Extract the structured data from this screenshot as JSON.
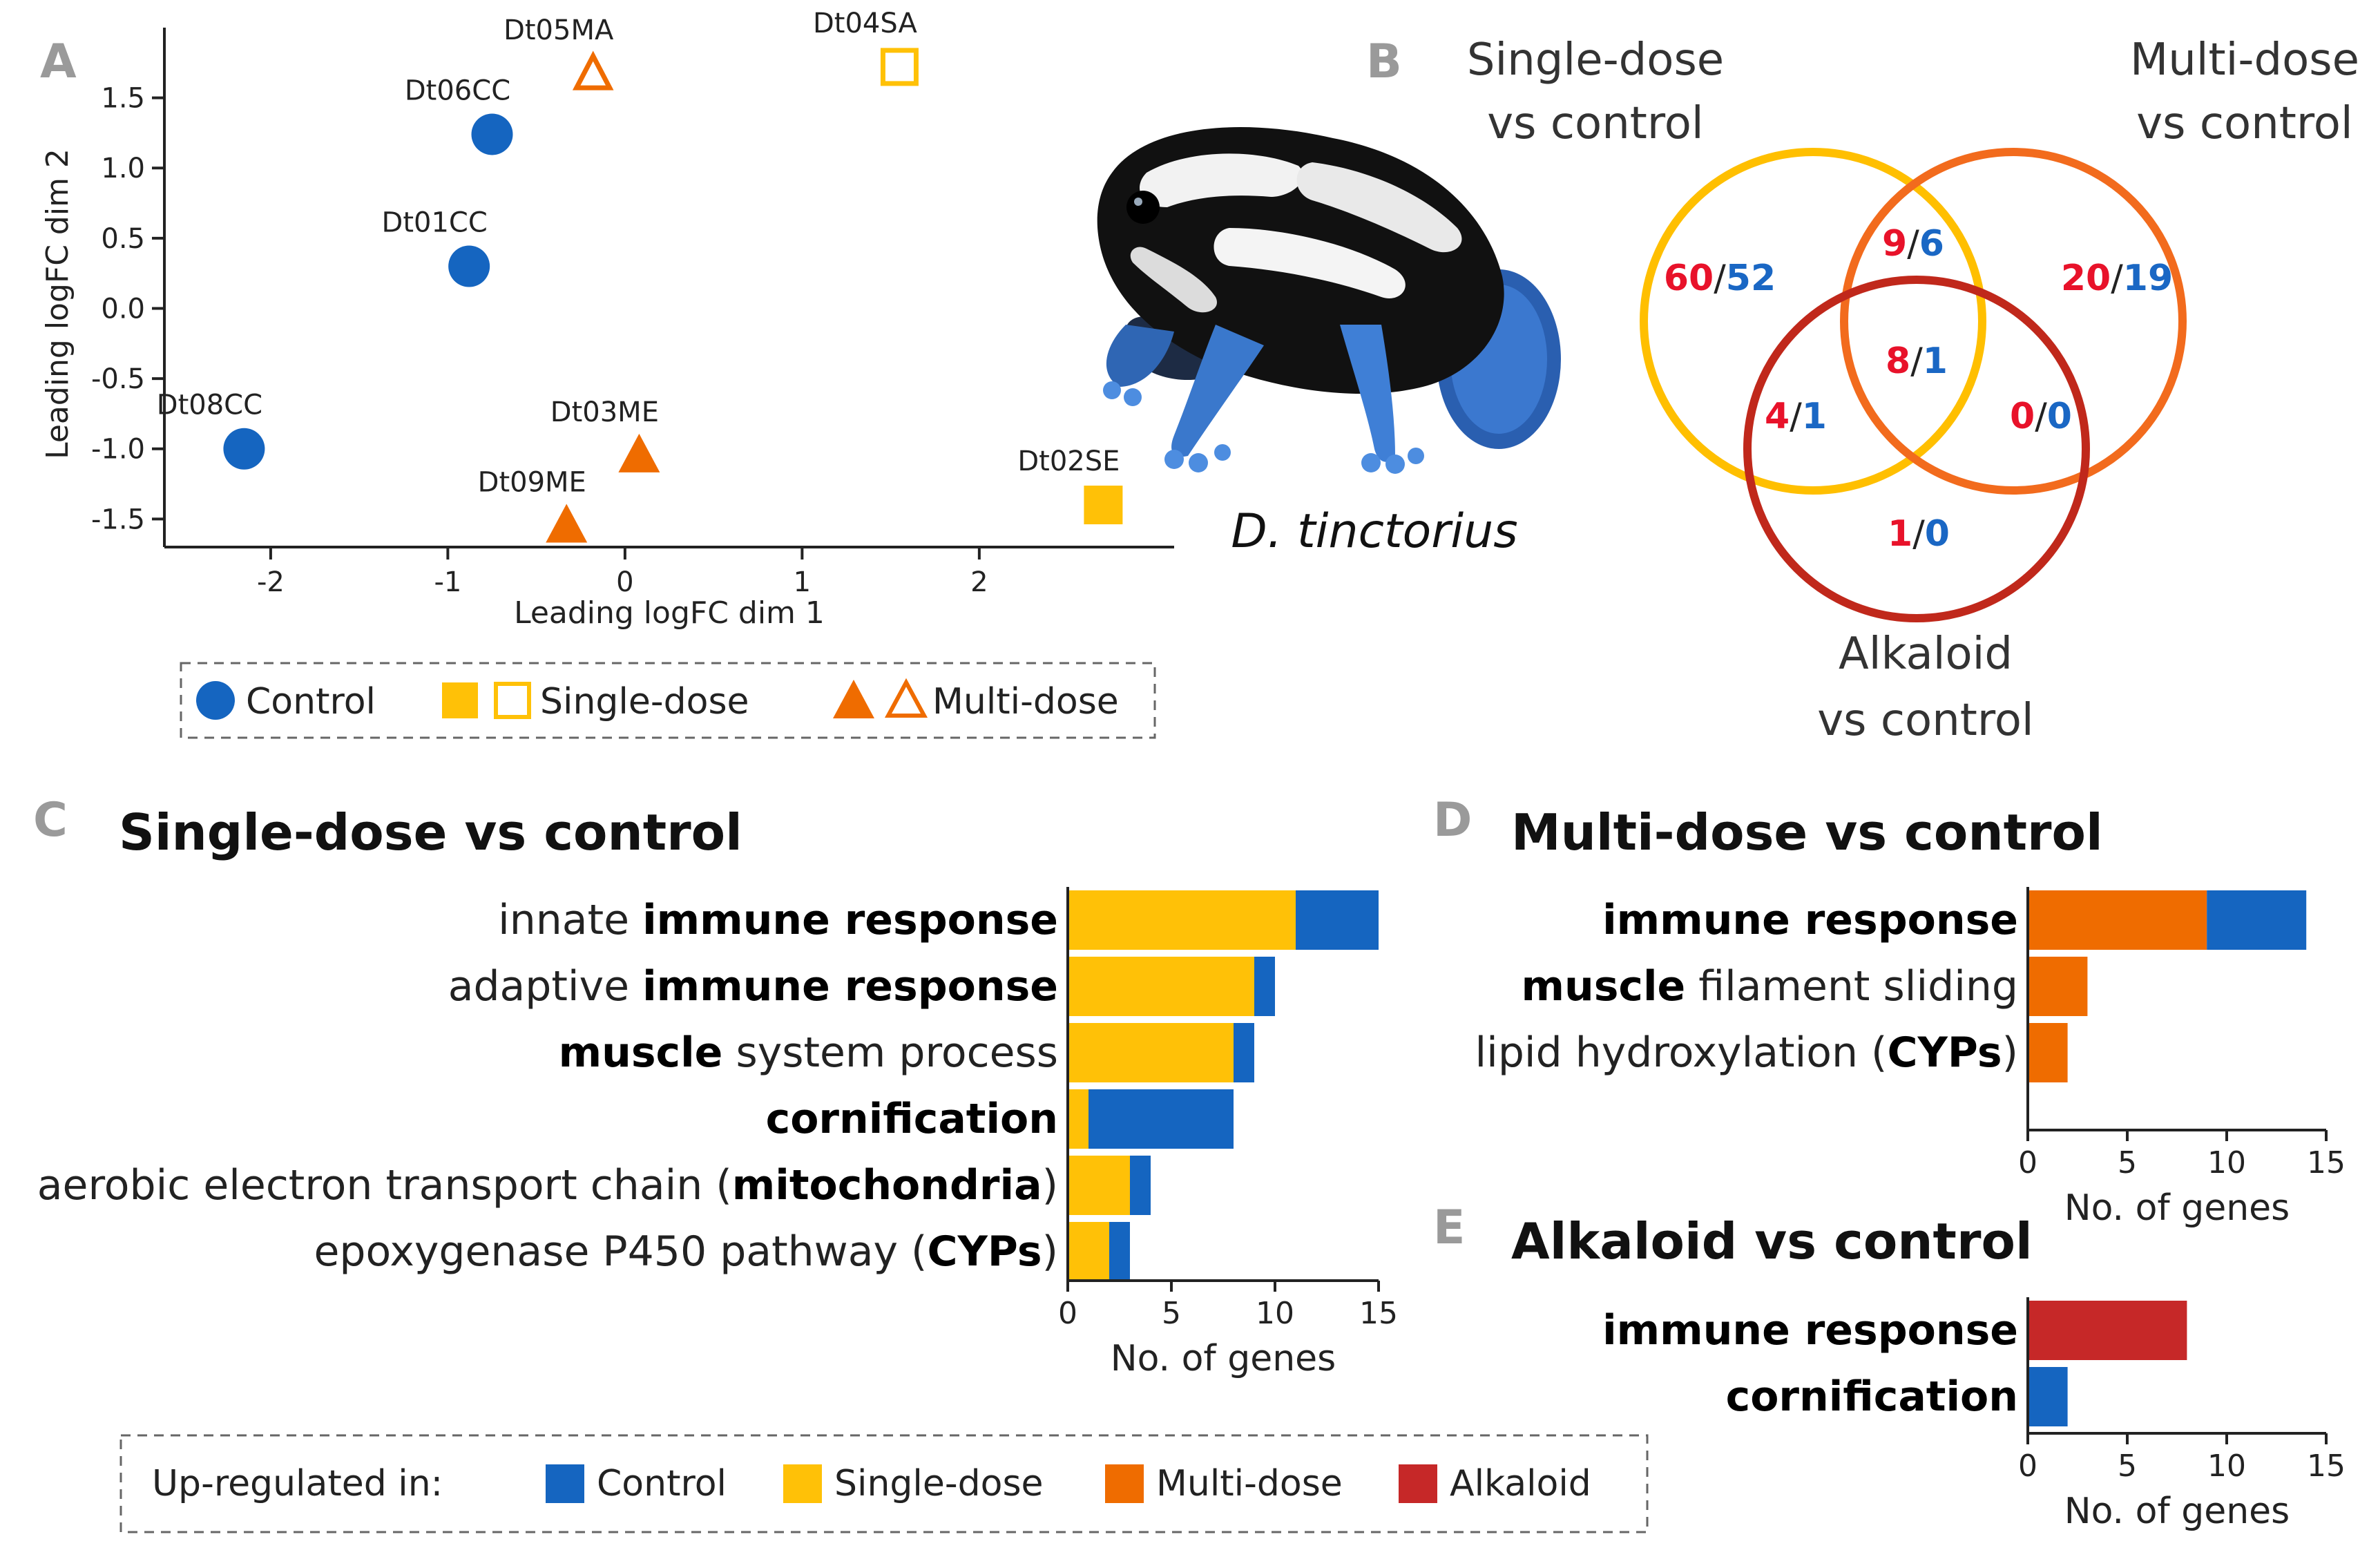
{
  "colors": {
    "control": "#1565c0",
    "single": "#ffc107",
    "multi": "#ef6c00",
    "alkaloid": "#c62828",
    "venn_red": "#e8122a",
    "venn_blue": "#1a67c4"
  },
  "panel_letters": {
    "a": "A",
    "b": "B",
    "c": "C",
    "d": "D",
    "e": "E"
  },
  "chart_data": [
    {
      "id": "A",
      "type": "scatter",
      "xlabel": "Leading logFC dim 1",
      "ylabel": "Leading logFC dim 2",
      "xlim": [
        -2.6,
        3.1
      ],
      "ylim": [
        -1.7,
        2.0
      ],
      "xticks": [
        -2,
        -1,
        0,
        1,
        2
      ],
      "xtick_labels": [
        "-2",
        "-1",
        "0",
        "1",
        "2"
      ],
      "yticks": [
        -1.5,
        -1.0,
        -0.5,
        0.0,
        0.5,
        1.0,
        1.5
      ],
      "ytick_labels": [
        "-1.5",
        "-1.0",
        "-0.5",
        "0.0",
        "0.5",
        "1.0",
        "1.5"
      ],
      "points": [
        {
          "label": "Dt05MA",
          "x": -0.18,
          "y": 1.67,
          "group": "multi",
          "marker": "triangle-open"
        },
        {
          "label": "Dt04SA",
          "x": 1.55,
          "y": 1.72,
          "group": "single",
          "marker": "square-open"
        },
        {
          "label": "Dt06CC",
          "x": -0.75,
          "y": 1.24,
          "group": "control",
          "marker": "circle"
        },
        {
          "label": "Dt01CC",
          "x": -0.88,
          "y": 0.3,
          "group": "control",
          "marker": "circle"
        },
        {
          "label": "Dt08CC",
          "x": -2.15,
          "y": -1.0,
          "group": "control",
          "marker": "circle"
        },
        {
          "label": "Dt03ME",
          "x": 0.08,
          "y": -1.05,
          "group": "multi",
          "marker": "triangle"
        },
        {
          "label": "Dt09ME",
          "x": -0.33,
          "y": -1.55,
          "group": "multi",
          "marker": "triangle"
        },
        {
          "label": "Dt02SE",
          "x": 2.7,
          "y": -1.4,
          "group": "single",
          "marker": "square"
        }
      ],
      "legend": {
        "control": "Control",
        "single": "Single-dose",
        "multi": "Multi-dose"
      }
    },
    {
      "id": "C",
      "type": "bar",
      "orientation": "horizontal",
      "stacked": true,
      "title": "Single-dose vs control",
      "xlabel": "No. of genes",
      "xlim": [
        0,
        15
      ],
      "xticks": [
        0,
        5,
        10,
        15
      ],
      "xtick_labels": [
        "0",
        "5",
        "10",
        "15"
      ],
      "categories": [
        {
          "pre": "innate ",
          "bold": "immune response",
          "post": ""
        },
        {
          "pre": "adaptive ",
          "bold": "immune response",
          "post": ""
        },
        {
          "pre": "",
          "bold": "muscle",
          "post": " system process"
        },
        {
          "pre": "",
          "bold": "cornification",
          "post": ""
        },
        {
          "pre": "aerobic electron transport chain (",
          "bold": "mitochondria",
          "post": ")"
        },
        {
          "pre": "epoxygenase P450 pathway (",
          "bold": "CYPs",
          "post": ")"
        }
      ],
      "series": [
        {
          "name": "Single-dose",
          "color_key": "single",
          "values": [
            11,
            9,
            8,
            1,
            3,
            2
          ]
        },
        {
          "name": "Control",
          "color_key": "control",
          "values": [
            4,
            1,
            1,
            7,
            1,
            1
          ]
        }
      ]
    },
    {
      "id": "D",
      "type": "bar",
      "orientation": "horizontal",
      "stacked": true,
      "title": "Multi-dose vs control",
      "xlabel": "No. of genes",
      "xlim": [
        0,
        15
      ],
      "xticks": [
        0,
        5,
        10,
        15
      ],
      "xtick_labels": [
        "0",
        "5",
        "10",
        "15"
      ],
      "categories": [
        {
          "pre": "",
          "bold": "immune response",
          "post": ""
        },
        {
          "pre": "",
          "bold": "muscle",
          "post": " filament sliding"
        },
        {
          "pre": "lipid hydroxylation (",
          "bold": "CYPs",
          "post": ")"
        }
      ],
      "series": [
        {
          "name": "Multi-dose",
          "color_key": "multi",
          "values": [
            9,
            3,
            2
          ]
        },
        {
          "name": "Control",
          "color_key": "control",
          "values": [
            5,
            0,
            0
          ]
        }
      ]
    },
    {
      "id": "E",
      "type": "bar",
      "orientation": "horizontal",
      "stacked": true,
      "title": "Alkaloid vs control",
      "xlabel": "No. of genes",
      "xlim": [
        0,
        15
      ],
      "xticks": [
        0,
        5,
        10,
        15
      ],
      "xtick_labels": [
        "0",
        "5",
        "10",
        "15"
      ],
      "categories": [
        {
          "pre": "",
          "bold": "immune response",
          "post": ""
        },
        {
          "pre": "",
          "bold": "cornification",
          "post": ""
        }
      ],
      "series": [
        {
          "name": "Alkaloid",
          "color_key": "alkaloid",
          "values": [
            8,
            0
          ]
        },
        {
          "name": "Control",
          "color_key": "control",
          "values": [
            0,
            2
          ]
        }
      ]
    }
  ],
  "venn": {
    "sets": {
      "single": {
        "line1": "Single-dose",
        "line2": "vs control",
        "color": "#ffbf00"
      },
      "multi": {
        "line1": "Multi-dose",
        "line2": "vs control",
        "color": "#f26b1d"
      },
      "alkaloid": {
        "line1": "Alkaloid",
        "line2": "vs control",
        "color": "#c0281b"
      }
    },
    "regions": {
      "single_only": {
        "up": "60",
        "down": "52"
      },
      "single_multi": {
        "up": "9",
        "down": "6"
      },
      "multi_only": {
        "up": "20",
        "down": "19"
      },
      "all_three": {
        "up": "8",
        "down": "1"
      },
      "single_alkaloid": {
        "up": "4",
        "down": "1"
      },
      "multi_alkaloid": {
        "up": "0",
        "down": "0"
      },
      "alkaloid_only": {
        "up": "1",
        "down": "0"
      }
    },
    "separator": "/"
  },
  "species": "D. tinctorius",
  "updown_legend": {
    "title": "Up-regulated in:",
    "items": [
      {
        "label": "Control",
        "color_key": "control"
      },
      {
        "label": "Single-dose",
        "color_key": "single"
      },
      {
        "label": "Multi-dose",
        "color_key": "multi"
      },
      {
        "label": "Alkaloid",
        "color_key": "alkaloid"
      }
    ]
  }
}
